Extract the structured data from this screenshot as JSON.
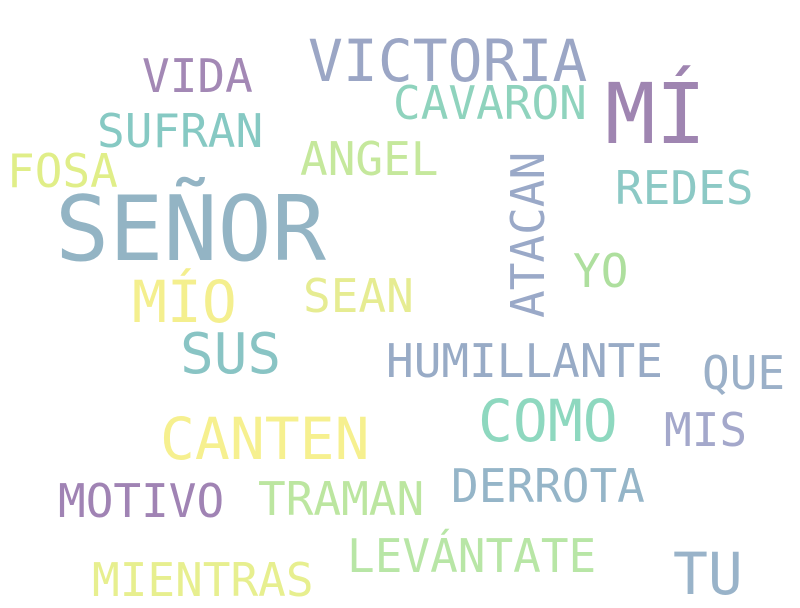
{
  "words": {
    "senor": {
      "text": "SEÑOR",
      "color": "#93b4c4"
    },
    "mi_accent": {
      "text": "MÍ",
      "color": "#9f85b1"
    },
    "victoria": {
      "text": "VICTORIA",
      "color": "#9ba6c5"
    },
    "vida": {
      "text": "VIDA",
      "color": "#a388b5"
    },
    "cavaron": {
      "text": "CAVARON",
      "color": "#8fd3bd"
    },
    "sufran": {
      "text": "SUFRAN",
      "color": "#86c9c3"
    },
    "angel": {
      "text": "ANGEL",
      "color": "#c5e89c"
    },
    "fosa": {
      "text": "FOSA",
      "color": "#e0ee88"
    },
    "redes": {
      "text": "REDES",
      "color": "#8cc9c5"
    },
    "atacan": {
      "text": "ATACAN",
      "color": "#9aa9c8"
    },
    "yo": {
      "text": "YO",
      "color": "#aedf9e"
    },
    "mio": {
      "text": "MÍO",
      "color": "#f4ef8e"
    },
    "sean": {
      "text": "SEAN",
      "color": "#e6ec92"
    },
    "sus": {
      "text": "SUS",
      "color": "#89c4c4"
    },
    "humillante": {
      "text": "HUMILLANTE",
      "color": "#98abc6"
    },
    "que": {
      "text": "QUE",
      "color": "#9bb0c8"
    },
    "canten": {
      "text": "CANTEN",
      "color": "#f6f08f"
    },
    "como": {
      "text": "COMO",
      "color": "#8ed8bf"
    },
    "mis": {
      "text": "MIS",
      "color": "#a4a8cb"
    },
    "derrota": {
      "text": "DERROTA",
      "color": "#95b5c8"
    },
    "motivo": {
      "text": "MOTIVO",
      "color": "#a083b4"
    },
    "traman": {
      "text": "TRAMAN",
      "color": "#bce6a0"
    },
    "mientras": {
      "text": "MIENTRAS",
      "color": "#e7ef8f"
    },
    "levantate": {
      "text": "LEVÁNTATE",
      "color": "#b8e6a6"
    },
    "tu": {
      "text": "TU",
      "color": "#99b3c9"
    }
  }
}
